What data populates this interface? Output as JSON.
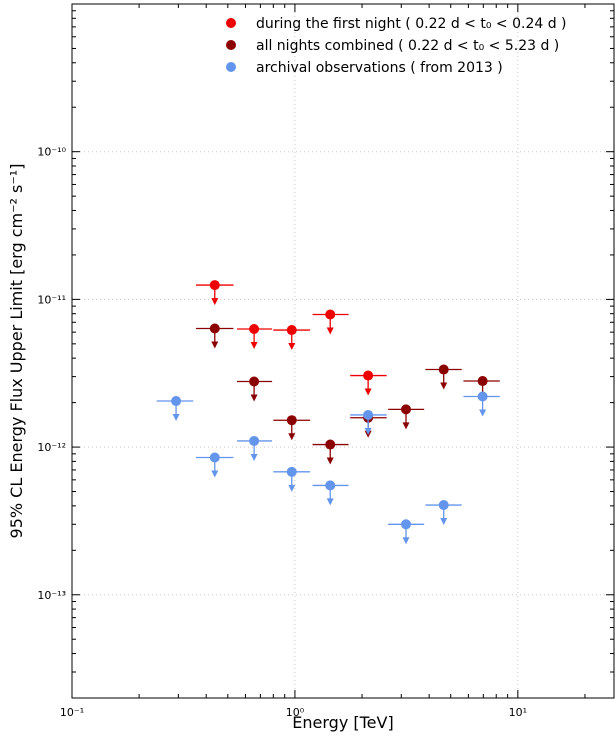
{
  "chart_data": {
    "type": "scatter",
    "x_scale": "log",
    "y_scale": "log",
    "xlabel": "Energy [TeV]",
    "ylabel": "95% CL Energy Flux Upper Limit [erg cm⁻² s⁻¹]",
    "xlim": [
      0.1,
      27
    ],
    "ylim": [
      2e-14,
      1e-09
    ],
    "grid": true,
    "legend_position": "top-right",
    "x_ticks": [
      {
        "value": 0.1,
        "label": "10⁻¹"
      },
      {
        "value": 1,
        "label": "10⁰"
      },
      {
        "value": 10,
        "label": "10¹"
      }
    ],
    "y_ticks": [
      {
        "value": 1e-13,
        "label": "10⁻¹³"
      },
      {
        "value": 1e-12,
        "label": "10⁻¹²"
      },
      {
        "value": 1e-11,
        "label": "10⁻¹¹"
      },
      {
        "value": 1e-10,
        "label": "10⁻¹⁰"
      }
    ],
    "series": [
      {
        "name": "during the first night ( 0.22 d < t₀ < 0.24 d )",
        "color": "#ee0000",
        "points": [
          {
            "x": 0.437,
            "y": 1.25e-11,
            "xlo": 0.36,
            "xhi": 0.53
          },
          {
            "x": 0.656,
            "y": 6.3e-12,
            "xlo": 0.55,
            "xhi": 0.79
          },
          {
            "x": 0.968,
            "y": 6.2e-12,
            "xlo": 0.8,
            "xhi": 1.17
          },
          {
            "x": 1.44,
            "y": 7.9e-12,
            "xlo": 1.2,
            "xhi": 1.74
          },
          {
            "x": 2.13,
            "y": 3.05e-12,
            "xlo": 1.77,
            "xhi": 2.58
          }
        ]
      },
      {
        "name": "all nights combined ( 0.22 d < t₀ < 5.23 d )",
        "color": "#8b0000",
        "points": [
          {
            "x": 0.437,
            "y": 6.35e-12,
            "xlo": 0.36,
            "xhi": 0.53
          },
          {
            "x": 0.656,
            "y": 2.78e-12,
            "xlo": 0.55,
            "xhi": 0.79
          },
          {
            "x": 0.968,
            "y": 1.52e-12,
            "xlo": 0.8,
            "xhi": 1.17
          },
          {
            "x": 1.44,
            "y": 1.04e-12,
            "xlo": 1.2,
            "xhi": 1.74
          },
          {
            "x": 2.13,
            "y": 1.58e-12,
            "xlo": 1.77,
            "xhi": 2.58
          },
          {
            "x": 3.15,
            "y": 1.8e-12,
            "xlo": 2.62,
            "xhi": 3.8
          },
          {
            "x": 4.65,
            "y": 3.35e-12,
            "xlo": 3.85,
            "xhi": 5.6
          },
          {
            "x": 6.95,
            "y": 2.8e-12,
            "xlo": 5.7,
            "xhi": 8.3
          }
        ]
      },
      {
        "name": "archival observations ( from 2013 )",
        "color": "#6495ed",
        "points": [
          {
            "x": 0.293,
            "y": 2.05e-12,
            "xlo": 0.24,
            "xhi": 0.35
          },
          {
            "x": 0.437,
            "y": 8.5e-13,
            "xlo": 0.36,
            "xhi": 0.53
          },
          {
            "x": 0.656,
            "y": 1.1e-12,
            "xlo": 0.55,
            "xhi": 0.79
          },
          {
            "x": 0.968,
            "y": 6.8e-13,
            "xlo": 0.8,
            "xhi": 1.17
          },
          {
            "x": 1.44,
            "y": 5.5e-13,
            "xlo": 1.2,
            "xhi": 1.74
          },
          {
            "x": 2.13,
            "y": 1.65e-12,
            "xlo": 1.77,
            "xhi": 2.58
          },
          {
            "x": 3.15,
            "y": 3e-13,
            "xlo": 2.62,
            "xhi": 3.8
          },
          {
            "x": 4.65,
            "y": 4.05e-13,
            "xlo": 3.85,
            "xhi": 5.6
          },
          {
            "x": 6.95,
            "y": 2.2e-12,
            "xlo": 5.7,
            "xhi": 8.3
          }
        ]
      }
    ]
  }
}
